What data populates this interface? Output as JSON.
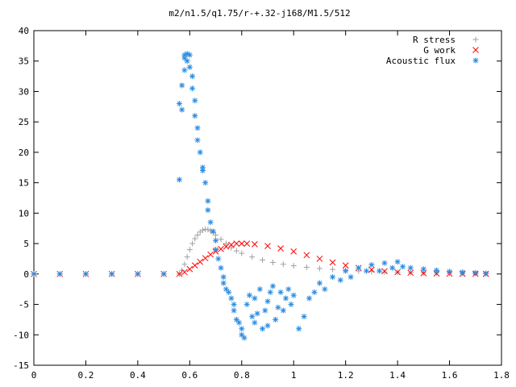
{
  "chart_data": {
    "type": "scatter",
    "title": "m2/n1.5/q1.75/r-+.32-j168/M1.5/512",
    "xlabel": "",
    "ylabel": "",
    "xlim": [
      0,
      1.8
    ],
    "ylim": [
      -15,
      40
    ],
    "x_ticks": [
      "0",
      "0.2",
      "0.4",
      "0.6",
      "0.8",
      "1",
      "1.2",
      "1.4",
      "1.6",
      "1.8"
    ],
    "y_ticks": [
      "40",
      "35",
      "30",
      "25",
      "20",
      "15",
      "10",
      "5",
      "0",
      "-5",
      "-10",
      "-15"
    ],
    "grid": false,
    "legend_position": "top-right",
    "series": [
      {
        "name": "R stress",
        "marker": "+",
        "color": "#a0a0a0",
        "x": [
          0.0,
          0.1,
          0.2,
          0.3,
          0.4,
          0.5,
          0.56,
          0.57,
          0.58,
          0.59,
          0.6,
          0.61,
          0.62,
          0.63,
          0.64,
          0.65,
          0.66,
          0.67,
          0.68,
          0.69,
          0.7,
          0.72,
          0.74,
          0.76,
          0.78,
          0.8,
          0.84,
          0.88,
          0.92,
          0.96,
          1.0,
          1.05,
          1.1,
          1.15,
          1.2,
          1.25,
          1.3,
          1.35,
          1.4,
          1.45,
          1.5,
          1.55,
          1.6,
          1.65,
          1.7,
          1.74
        ],
        "y": [
          0.0,
          0.0,
          0.0,
          0.0,
          0.0,
          0.0,
          0.0,
          0.6,
          1.6,
          2.8,
          4.0,
          5.0,
          5.8,
          6.4,
          6.9,
          7.2,
          7.35,
          7.3,
          7.1,
          6.8,
          6.4,
          5.7,
          5.0,
          4.3,
          3.8,
          3.4,
          2.8,
          2.3,
          1.9,
          1.6,
          1.35,
          1.1,
          0.9,
          0.75,
          0.6,
          0.5,
          0.4,
          0.33,
          0.28,
          0.22,
          0.18,
          0.15,
          0.12,
          0.1,
          0.08,
          0.07
        ]
      },
      {
        "name": "G work",
        "marker": "x",
        "color": "#ff0000",
        "x": [
          0.0,
          0.1,
          0.2,
          0.3,
          0.4,
          0.5,
          0.56,
          0.58,
          0.6,
          0.62,
          0.64,
          0.66,
          0.68,
          0.7,
          0.72,
          0.74,
          0.76,
          0.78,
          0.8,
          0.82,
          0.85,
          0.9,
          0.95,
          1.0,
          1.05,
          1.1,
          1.15,
          1.2,
          1.25,
          1.3,
          1.35,
          1.4,
          1.45,
          1.5,
          1.55,
          1.6,
          1.65,
          1.7,
          1.74
        ],
        "y": [
          0.0,
          0.0,
          0.0,
          0.0,
          0.0,
          0.0,
          0.0,
          0.3,
          0.8,
          1.4,
          2.0,
          2.6,
          3.2,
          3.7,
          4.1,
          4.5,
          4.8,
          5.0,
          5.0,
          5.0,
          4.9,
          4.6,
          4.2,
          3.7,
          3.1,
          2.5,
          1.9,
          1.4,
          1.0,
          0.7,
          0.45,
          0.3,
          0.2,
          0.12,
          0.08,
          0.05,
          0.03,
          0.02,
          0.01
        ]
      },
      {
        "name": "Acoustic flux",
        "marker": "*",
        "color": "#2a8be0",
        "x": [
          0.0,
          0.1,
          0.2,
          0.3,
          0.4,
          0.5,
          0.56,
          0.56,
          0.57,
          0.57,
          0.58,
          0.58,
          0.58,
          0.59,
          0.59,
          0.6,
          0.6,
          0.61,
          0.61,
          0.62,
          0.62,
          0.63,
          0.63,
          0.64,
          0.65,
          0.65,
          0.66,
          0.67,
          0.67,
          0.68,
          0.69,
          0.7,
          0.7,
          0.71,
          0.72,
          0.73,
          0.73,
          0.74,
          0.75,
          0.76,
          0.77,
          0.77,
          0.78,
          0.79,
          0.8,
          0.8,
          0.81,
          0.82,
          0.83,
          0.84,
          0.85,
          0.85,
          0.86,
          0.87,
          0.88,
          0.89,
          0.9,
          0.9,
          0.91,
          0.92,
          0.93,
          0.94,
          0.95,
          0.96,
          0.97,
          0.98,
          0.99,
          1.0,
          1.02,
          1.04,
          1.06,
          1.08,
          1.1,
          1.12,
          1.15,
          1.18,
          1.2,
          1.22,
          1.25,
          1.28,
          1.3,
          1.33,
          1.35,
          1.38,
          1.4,
          1.42,
          1.45,
          1.5,
          1.55,
          1.6,
          1.65,
          1.7,
          1.74
        ],
        "y": [
          0.0,
          0.0,
          0.0,
          0.0,
          0.0,
          0.0,
          15.5,
          28.0,
          27.0,
          31.0,
          33.5,
          35.5,
          36.0,
          36.2,
          35.0,
          36.0,
          34.0,
          32.5,
          30.5,
          28.5,
          26.0,
          24.0,
          22.0,
          20.0,
          17.5,
          17.0,
          15.0,
          12.0,
          10.5,
          8.5,
          7.0,
          5.5,
          4.0,
          2.5,
          1.0,
          -0.5,
          -1.5,
          -2.5,
          -3.0,
          -4.0,
          -5.0,
          -6.0,
          -7.5,
          -8.0,
          -9.0,
          -10.0,
          -10.5,
          -5.0,
          -3.5,
          -7.0,
          -8.0,
          -4.0,
          -6.5,
          -2.5,
          -9.0,
          -6.0,
          -4.5,
          -8.5,
          -3.0,
          -2.0,
          -7.5,
          -5.5,
          -3.0,
          -6.0,
          -4.0,
          -2.5,
          -5.0,
          -3.5,
          -9.0,
          -7.0,
          -4.0,
          -3.0,
          -1.5,
          -2.5,
          -0.5,
          -1.0,
          0.5,
          -0.5,
          1.0,
          0.5,
          1.5,
          0.5,
          1.8,
          1.0,
          2.0,
          1.2,
          1.0,
          0.8,
          0.6,
          0.4,
          0.3,
          0.2,
          0.1
        ]
      }
    ]
  }
}
